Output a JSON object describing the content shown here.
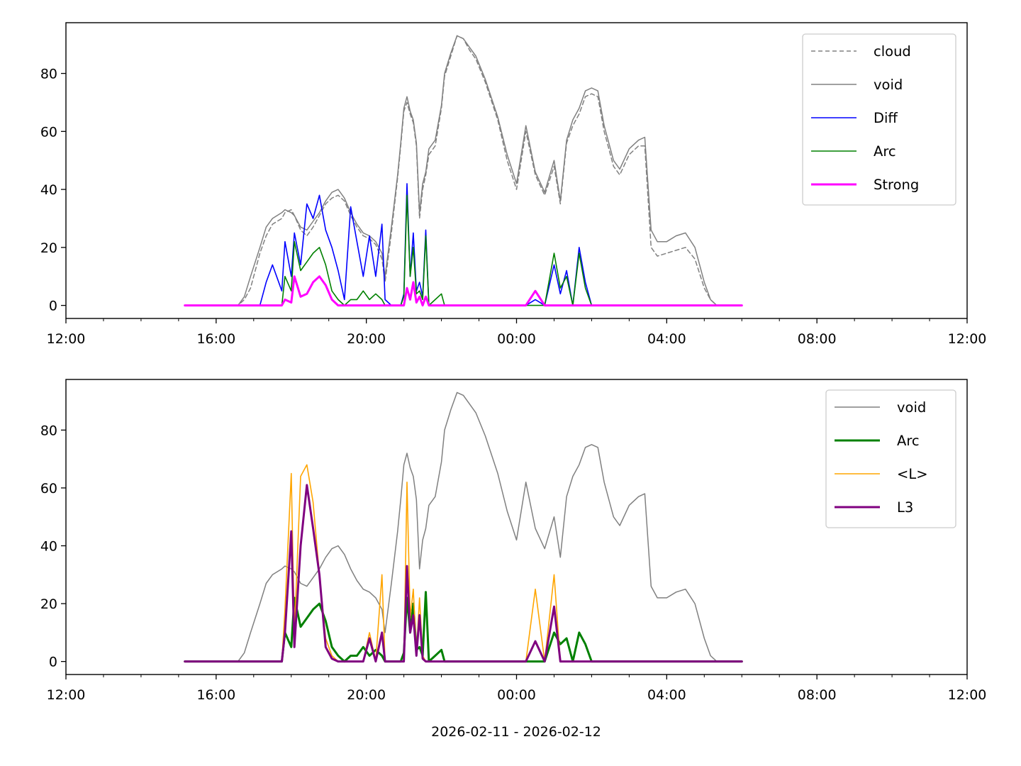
{
  "figure": {
    "xlabel": "2026-02-11 - 2026-02-12",
    "xticks": [
      "12:00",
      "16:00",
      "20:00",
      "00:00",
      "04:00",
      "08:00",
      "12:00"
    ],
    "xlim": [
      "2026-02-11T12:00",
      "2026-02-12T12:00"
    ],
    "minor_tick_interval_hours": 1
  },
  "chart_data": [
    {
      "type": "line",
      "panel": "top",
      "ylim": [
        -4.5,
        97.5
      ],
      "yticks": [
        0,
        20,
        40,
        60,
        80
      ],
      "legend_position": "top-right",
      "x": [
        "15:10",
        "16:00",
        "16:20",
        "16:35",
        "16:45",
        "16:55",
        "17:10",
        "17:20",
        "17:30",
        "17:45",
        "17:50",
        "18:00",
        "18:05",
        "18:15",
        "18:25",
        "18:35",
        "18:45",
        "18:55",
        "19:05",
        "19:15",
        "19:25",
        "19:35",
        "19:45",
        "19:55",
        "20:05",
        "20:15",
        "20:25",
        "20:30",
        "20:40",
        "20:50",
        "20:55",
        "21:00",
        "21:05",
        "21:10",
        "21:15",
        "21:20",
        "21:25",
        "21:30",
        "21:35",
        "21:40",
        "21:50",
        "22:00",
        "22:05",
        "22:15",
        "22:25",
        "22:35",
        "22:45",
        "22:55",
        "23:10",
        "23:30",
        "23:45",
        "00:00",
        "00:15",
        "00:30",
        "00:45",
        "01:00",
        "01:10",
        "01:20",
        "01:30",
        "01:40",
        "01:50",
        "02:00",
        "02:10",
        "02:20",
        "02:35",
        "02:45",
        "03:00",
        "03:15",
        "03:25",
        "03:35",
        "03:45",
        "04:00",
        "04:15",
        "04:30",
        "04:45",
        "05:00",
        "05:10",
        "05:20",
        "06:00"
      ],
      "series": [
        {
          "name": "cloud",
          "color": "#808080",
          "style": "dashed",
          "width": 1.5,
          "values": [
            0,
            0,
            0,
            0,
            2,
            6,
            18,
            24,
            28,
            30,
            32,
            33,
            31,
            26,
            24,
            27,
            31,
            35,
            37,
            38,
            36,
            31,
            27,
            24,
            23,
            21,
            16,
            8,
            25,
            44,
            55,
            67,
            70,
            66,
            63,
            55,
            30,
            40,
            45,
            52,
            55,
            68,
            79,
            86,
            93,
            92,
            88,
            85,
            77,
            64,
            50,
            40,
            60,
            45,
            38,
            48,
            35,
            56,
            62,
            66,
            72,
            73,
            72,
            60,
            48,
            45,
            52,
            55,
            55,
            20,
            17,
            18,
            19,
            20,
            16,
            6,
            2,
            0,
            0
          ]
        },
        {
          "name": "void",
          "color": "#808080",
          "style": "solid",
          "width": 1.5,
          "values": [
            0,
            0,
            0,
            0,
            3,
            10,
            20,
            27,
            30,
            32,
            33,
            32,
            31,
            27,
            26,
            29,
            32,
            36,
            39,
            40,
            37,
            32,
            28,
            25,
            24,
            22,
            18,
            10,
            27,
            45,
            56,
            68,
            72,
            67,
            64,
            56,
            32,
            42,
            46,
            54,
            57,
            69,
            80,
            87,
            93,
            92,
            89,
            86,
            78,
            65,
            52,
            42,
            62,
            46,
            39,
            50,
            36,
            57,
            64,
            68,
            74,
            75,
            74,
            62,
            50,
            47,
            54,
            57,
            58,
            26,
            22,
            22,
            24,
            25,
            20,
            8,
            2,
            0,
            0
          ]
        },
        {
          "name": "Diff",
          "color": "#0000ff",
          "style": "solid",
          "width": 1.6,
          "values": [
            0,
            0,
            0,
            0,
            0,
            0,
            0,
            8,
            14,
            5,
            22,
            10,
            25,
            14,
            35,
            30,
            38,
            26,
            20,
            12,
            2,
            34,
            22,
            10,
            24,
            10,
            28,
            2,
            0,
            0,
            0,
            4,
            42,
            10,
            25,
            5,
            8,
            3,
            26,
            0,
            0,
            0,
            0,
            0,
            0,
            0,
            0,
            0,
            0,
            0,
            0,
            0,
            0,
            2,
            0,
            14,
            4,
            12,
            0,
            20,
            8,
            0,
            0,
            0,
            0,
            0,
            0,
            0,
            0,
            0,
            0,
            0,
            0,
            0,
            0,
            0,
            0,
            0,
            0
          ]
        },
        {
          "name": "Arc",
          "color": "#008000",
          "style": "solid",
          "width": 1.6,
          "values": [
            0,
            0,
            0,
            0,
            0,
            0,
            0,
            0,
            0,
            0,
            10,
            5,
            22,
            12,
            15,
            18,
            20,
            14,
            5,
            2,
            0,
            2,
            2,
            5,
            2,
            4,
            2,
            0,
            0,
            0,
            0,
            3,
            38,
            10,
            20,
            4,
            5,
            2,
            24,
            0,
            2,
            4,
            0,
            0,
            0,
            0,
            0,
            0,
            0,
            0,
            0,
            0,
            0,
            0,
            0,
            18,
            6,
            10,
            0,
            18,
            6,
            0,
            0,
            0,
            0,
            0,
            0,
            0,
            0,
            0,
            0,
            0,
            0,
            0,
            0,
            0,
            0,
            0,
            0
          ]
        },
        {
          "name": "Strong",
          "color": "#ff00ff",
          "style": "solid",
          "width": 3,
          "values": [
            0,
            0,
            0,
            0,
            0,
            0,
            0,
            0,
            0,
            0,
            2,
            1,
            10,
            3,
            4,
            8,
            10,
            7,
            2,
            0,
            0,
            0,
            0,
            0,
            0,
            0,
            0,
            0,
            0,
            0,
            0,
            0,
            6,
            2,
            8,
            1,
            3,
            0,
            3,
            0,
            0,
            0,
            0,
            0,
            0,
            0,
            0,
            0,
            0,
            0,
            0,
            0,
            0,
            5,
            0,
            0,
            0,
            0,
            0,
            0,
            0,
            0,
            0,
            0,
            0,
            0,
            0,
            0,
            0,
            0,
            0,
            0,
            0,
            0,
            0,
            0,
            0,
            0,
            0
          ]
        }
      ]
    },
    {
      "type": "line",
      "panel": "bottom",
      "ylim": [
        -4.5,
        97.5
      ],
      "yticks": [
        0,
        20,
        40,
        60,
        80
      ],
      "legend_position": "top-right",
      "x": [
        "15:10",
        "16:00",
        "16:20",
        "16:35",
        "16:45",
        "16:55",
        "17:10",
        "17:20",
        "17:30",
        "17:45",
        "17:50",
        "18:00",
        "18:05",
        "18:15",
        "18:25",
        "18:35",
        "18:45",
        "18:55",
        "19:05",
        "19:15",
        "19:25",
        "19:35",
        "19:45",
        "19:55",
        "20:05",
        "20:15",
        "20:25",
        "20:30",
        "20:40",
        "20:50",
        "20:55",
        "21:00",
        "21:05",
        "21:10",
        "21:15",
        "21:20",
        "21:25",
        "21:30",
        "21:35",
        "21:40",
        "21:50",
        "22:00",
        "22:05",
        "22:15",
        "22:25",
        "22:35",
        "22:45",
        "22:55",
        "23:10",
        "23:30",
        "23:45",
        "00:00",
        "00:15",
        "00:30",
        "00:45",
        "01:00",
        "01:10",
        "01:20",
        "01:30",
        "01:40",
        "01:50",
        "02:00",
        "02:10",
        "02:20",
        "02:35",
        "02:45",
        "03:00",
        "03:15",
        "03:25",
        "03:35",
        "03:45",
        "04:00",
        "04:15",
        "04:30",
        "04:45",
        "05:00",
        "05:10",
        "05:20",
        "06:00"
      ],
      "series": [
        {
          "name": "void",
          "color": "#808080",
          "style": "solid",
          "width": 1.5,
          "values": [
            0,
            0,
            0,
            0,
            3,
            10,
            20,
            27,
            30,
            32,
            33,
            32,
            31,
            27,
            26,
            29,
            32,
            36,
            39,
            40,
            37,
            32,
            28,
            25,
            24,
            22,
            18,
            10,
            27,
            45,
            56,
            68,
            72,
            67,
            64,
            56,
            32,
            42,
            46,
            54,
            57,
            69,
            80,
            87,
            93,
            92,
            89,
            86,
            78,
            65,
            52,
            42,
            62,
            46,
            39,
            50,
            36,
            57,
            64,
            68,
            74,
            75,
            74,
            62,
            50,
            47,
            54,
            57,
            58,
            26,
            22,
            22,
            24,
            25,
            20,
            8,
            2,
            0,
            0
          ]
        },
        {
          "name": "Arc",
          "color": "#008000",
          "style": "solid",
          "width": 3,
          "values": [
            0,
            0,
            0,
            0,
            0,
            0,
            0,
            0,
            0,
            0,
            10,
            5,
            22,
            12,
            15,
            18,
            20,
            14,
            5,
            2,
            0,
            2,
            2,
            5,
            2,
            4,
            2,
            0,
            0,
            0,
            0,
            3,
            22,
            10,
            20,
            4,
            5,
            2,
            24,
            0,
            2,
            4,
            0,
            0,
            0,
            0,
            0,
            0,
            0,
            0,
            0,
            0,
            0,
            0,
            0,
            10,
            6,
            8,
            0,
            10,
            6,
            0,
            0,
            0,
            0,
            0,
            0,
            0,
            0,
            0,
            0,
            0,
            0,
            0,
            0,
            0,
            0,
            0,
            0
          ]
        },
        {
          "name": "<L>",
          "color": "#ffa500",
          "style": "solid",
          "width": 1.6,
          "values": [
            0,
            0,
            0,
            0,
            0,
            0,
            0,
            0,
            0,
            0,
            18,
            65,
            10,
            64,
            68,
            55,
            30,
            8,
            2,
            0,
            0,
            0,
            0,
            0,
            10,
            0,
            30,
            0,
            0,
            0,
            0,
            0,
            62,
            15,
            25,
            3,
            22,
            2,
            0,
            0,
            0,
            0,
            0,
            0,
            0,
            0,
            0,
            0,
            0,
            0,
            0,
            0,
            0,
            25,
            0,
            30,
            0,
            0,
            0,
            0,
            0,
            0,
            0,
            0,
            0,
            0,
            0,
            0,
            0,
            0,
            0,
            0,
            0,
            0,
            0,
            0,
            0,
            0,
            0
          ]
        },
        {
          "name": "L3",
          "color": "#800080",
          "style": "solid",
          "width": 3,
          "values": [
            0,
            0,
            0,
            0,
            0,
            0,
            0,
            0,
            0,
            0,
            10,
            45,
            5,
            40,
            61,
            46,
            30,
            5,
            1,
            0,
            0,
            0,
            0,
            0,
            8,
            0,
            10,
            0,
            0,
            0,
            0,
            0,
            33,
            10,
            16,
            2,
            16,
            1,
            0,
            0,
            0,
            0,
            0,
            0,
            0,
            0,
            0,
            0,
            0,
            0,
            0,
            0,
            0,
            7,
            0,
            19,
            0,
            0,
            0,
            0,
            0,
            0,
            0,
            0,
            0,
            0,
            0,
            0,
            0,
            0,
            0,
            0,
            0,
            0,
            0,
            0,
            0,
            0,
            0
          ]
        }
      ]
    }
  ]
}
